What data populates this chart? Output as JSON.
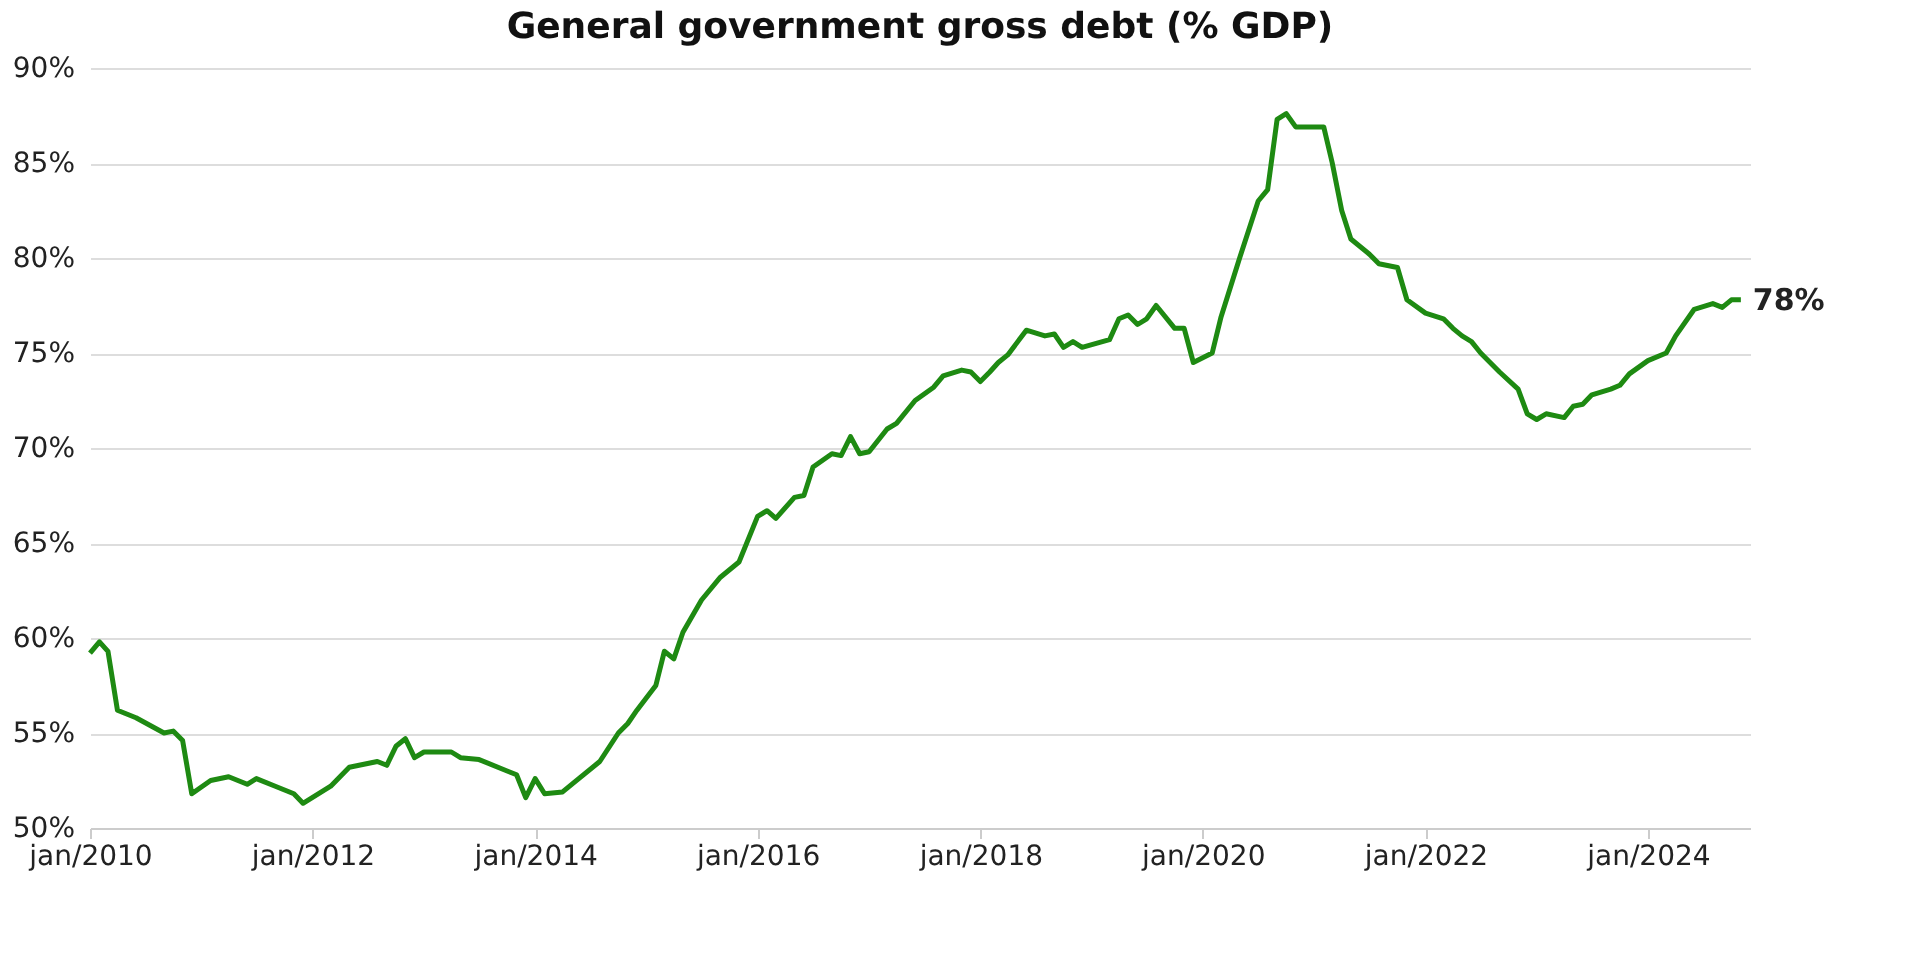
{
  "chart_data": {
    "type": "line",
    "title": "General government gross debt (% GDP)",
    "x": [
      "2010-01",
      "2010-02",
      "2010-03",
      "2010-04",
      "2010-06",
      "2010-09",
      "2010-10",
      "2010-11",
      "2010-12",
      "2011-02",
      "2011-04",
      "2011-06",
      "2011-07",
      "2011-09",
      "2011-11",
      "2011-12",
      "2012-03",
      "2012-05",
      "2012-08",
      "2012-09",
      "2012-10",
      "2012-11",
      "2012-12",
      "2013-01",
      "2013-04",
      "2013-05",
      "2013-07",
      "2013-10",
      "2013-11",
      "2013-12",
      "2014-01",
      "2014-02",
      "2014-04",
      "2014-05",
      "2014-08",
      "2014-10",
      "2014-11",
      "2014-12",
      "2015-02",
      "2015-03",
      "2015-04",
      "2015-05",
      "2015-07",
      "2015-09",
      "2015-11",
      "2016-01",
      "2016-02",
      "2016-03",
      "2016-05",
      "2016-06",
      "2016-07",
      "2016-09",
      "2016-10",
      "2016-11",
      "2016-12",
      "2017-01",
      "2017-03",
      "2017-04",
      "2017-06",
      "2017-08",
      "2017-09",
      "2017-11",
      "2017-12",
      "2018-01",
      "2018-02",
      "2018-03",
      "2018-04",
      "2018-06",
      "2018-08",
      "2018-09",
      "2018-10",
      "2018-11",
      "2018-12",
      "2019-03",
      "2019-04",
      "2019-05",
      "2019-06",
      "2019-07",
      "2019-08",
      "2019-10",
      "2019-11",
      "2019-12",
      "2020-02",
      "2020-03",
      "2020-05",
      "2020-07",
      "2020-08",
      "2020-09",
      "2020-10",
      "2020-11",
      "2021-02",
      "2021-03",
      "2021-04",
      "2021-05",
      "2021-07",
      "2021-08",
      "2021-10",
      "2021-11",
      "2022-01",
      "2022-03",
      "2022-04",
      "2022-05",
      "2022-06",
      "2022-07",
      "2022-09",
      "2022-11",
      "2022-12",
      "2023-01",
      "2023-02",
      "2023-04",
      "2023-05",
      "2023-06",
      "2023-07",
      "2023-09",
      "2023-10",
      "2023-11",
      "2024-01",
      "2024-03",
      "2024-04",
      "2024-06",
      "2024-08",
      "2024-09",
      "2024-10",
      "2024-11"
    ],
    "series": [
      {
        "color": "#1e8a12",
        "values": [
          59.2,
          59.8,
          59.3,
          56.2,
          55.8,
          55.0,
          55.1,
          54.6,
          51.8,
          52.5,
          52.7,
          52.3,
          52.6,
          52.2,
          51.8,
          51.3,
          52.2,
          53.2,
          53.5,
          53.3,
          54.3,
          54.7,
          53.7,
          54.0,
          54.0,
          53.7,
          53.6,
          53.0,
          52.8,
          51.6,
          52.6,
          51.8,
          51.9,
          52.3,
          53.5,
          55.0,
          55.5,
          56.2,
          57.5,
          59.3,
          58.9,
          60.3,
          62.0,
          63.2,
          64.0,
          66.4,
          66.7,
          66.3,
          67.4,
          67.5,
          69.0,
          69.7,
          69.6,
          70.6,
          69.7,
          69.8,
          71.0,
          71.3,
          72.5,
          73.2,
          73.8,
          74.1,
          74.0,
          73.5,
          74.0,
          74.5,
          74.9,
          76.2,
          75.9,
          76.0,
          75.3,
          75.6,
          75.3,
          75.7,
          76.8,
          77.0,
          76.5,
          76.8,
          77.5,
          76.3,
          76.3,
          74.5,
          75.0,
          76.9,
          80.0,
          83.0,
          83.6,
          87.3,
          87.6,
          86.9,
          86.9,
          85.0,
          82.5,
          81.0,
          80.2,
          79.7,
          79.5,
          77.8,
          77.1,
          76.8,
          76.3,
          75.9,
          75.6,
          75.0,
          74.0,
          73.1,
          71.8,
          71.5,
          71.8,
          71.6,
          72.2,
          72.3,
          72.8,
          73.1,
          73.3,
          73.9,
          74.6,
          75.0,
          75.9,
          77.3,
          77.6,
          77.4,
          77.8,
          77.8
        ]
      }
    ],
    "xlim": [
      "2010-01",
      "2024-12"
    ],
    "xticks": [
      {
        "value": "2010-01",
        "label": "jan/2010"
      },
      {
        "value": "2012-01",
        "label": "jan/2012"
      },
      {
        "value": "2014-01",
        "label": "jan/2014"
      },
      {
        "value": "2016-01",
        "label": "jan/2016"
      },
      {
        "value": "2018-01",
        "label": "jan/2018"
      },
      {
        "value": "2020-01",
        "label": "jan/2020"
      },
      {
        "value": "2022-01",
        "label": "jan/2022"
      },
      {
        "value": "2024-01",
        "label": "jan/2024"
      }
    ],
    "ylim": [
      50,
      90
    ],
    "yticks": [
      {
        "value": 50,
        "label": "50%"
      },
      {
        "value": 55,
        "label": "55%"
      },
      {
        "value": 60,
        "label": "60%"
      },
      {
        "value": 65,
        "label": "65%"
      },
      {
        "value": 70,
        "label": "70%"
      },
      {
        "value": 75,
        "label": "75%"
      },
      {
        "value": 80,
        "label": "80%"
      },
      {
        "value": 85,
        "label": "85%"
      },
      {
        "value": 90,
        "label": "90%"
      }
    ],
    "grid": "y",
    "legend": false,
    "marker": "none",
    "line_style": "solid",
    "annotations": [
      {
        "text": "78%",
        "x": "2024-11",
        "y": 77.8
      }
    ]
  }
}
